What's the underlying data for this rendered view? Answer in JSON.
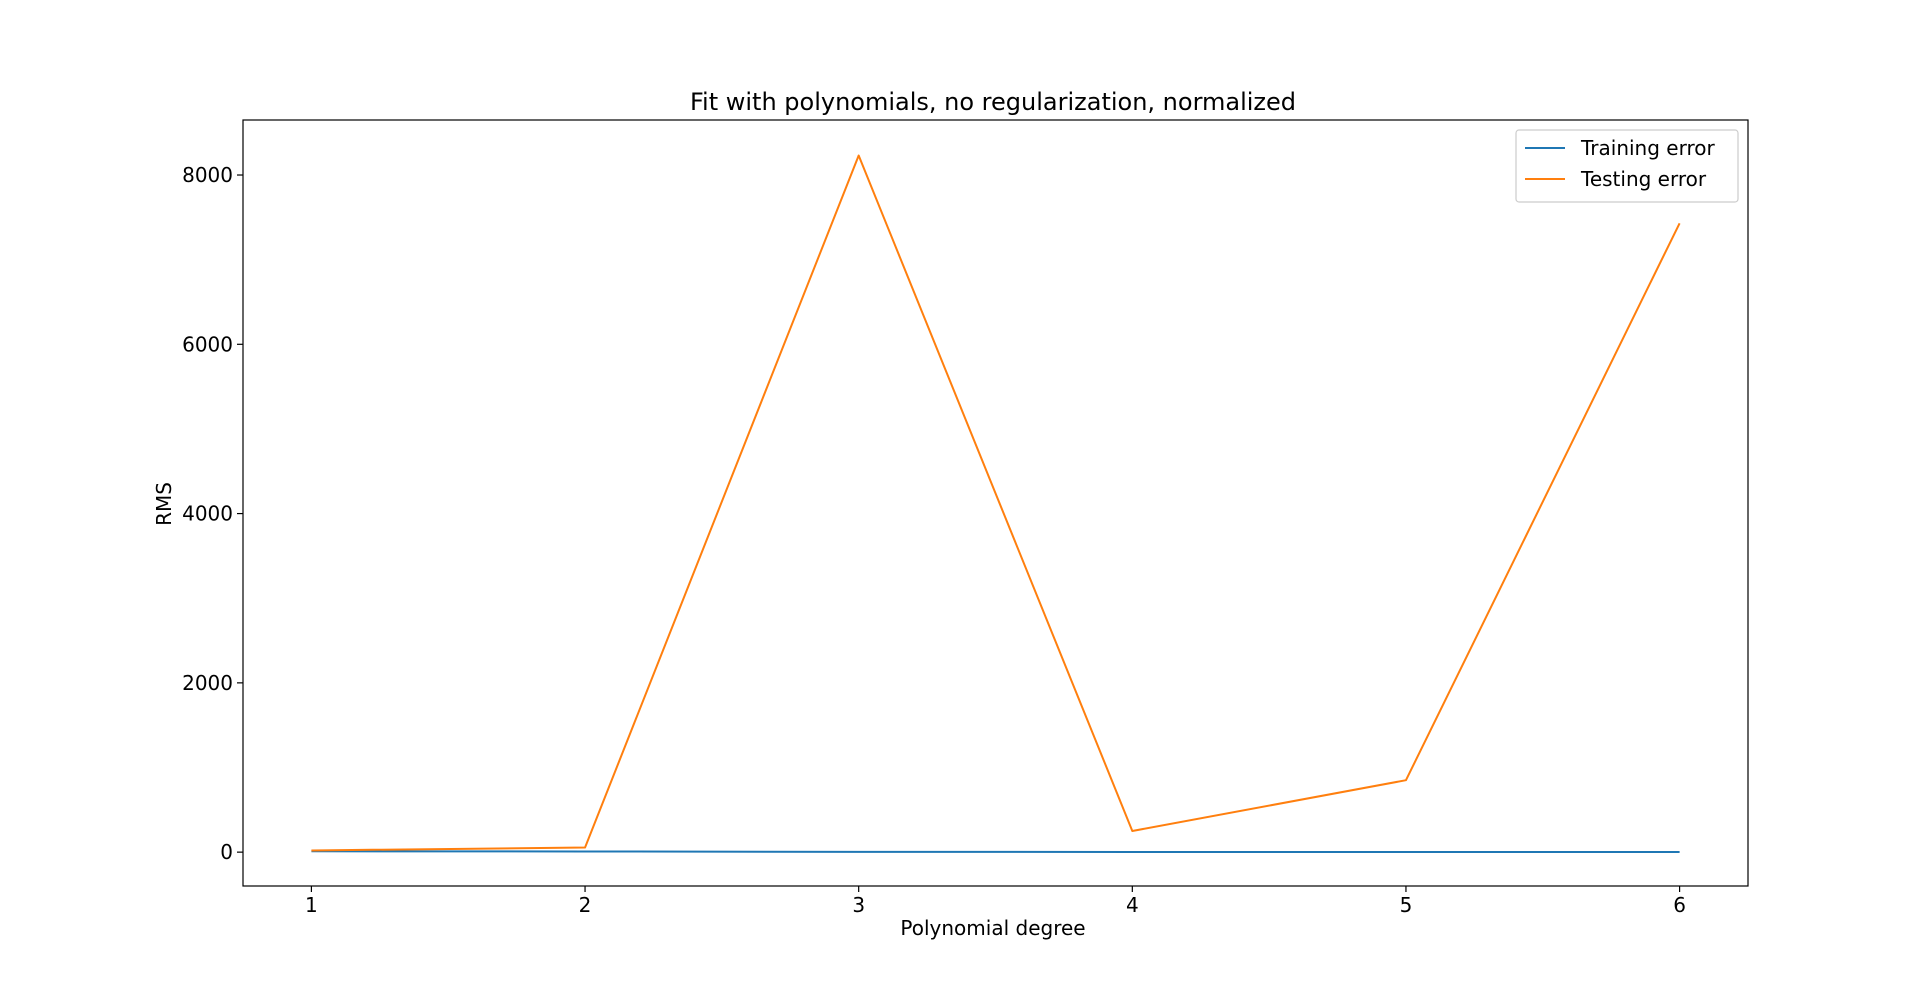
{
  "chart_data": {
    "type": "line",
    "title": "Fit with polynomials, no regularization, normalized",
    "xlabel": "Polynomial degree",
    "ylabel": "RMS",
    "x": [
      1,
      2,
      3,
      4,
      5,
      6
    ],
    "xlim": [
      0.75,
      6.25
    ],
    "ylim": [
      -400,
      8650
    ],
    "xticks": [
      1,
      2,
      3,
      4,
      5,
      6
    ],
    "yticks": [
      0,
      2000,
      4000,
      6000,
      8000
    ],
    "grid": false,
    "legend_position": "top-right",
    "series": [
      {
        "name": "Training error",
        "color": "#1f77b4",
        "values": [
          10,
          8,
          3,
          2,
          1,
          1
        ]
      },
      {
        "name": "Testing error",
        "color": "#ff7f0e",
        "values": [
          20,
          55,
          8230,
          250,
          850,
          7430
        ]
      }
    ]
  }
}
